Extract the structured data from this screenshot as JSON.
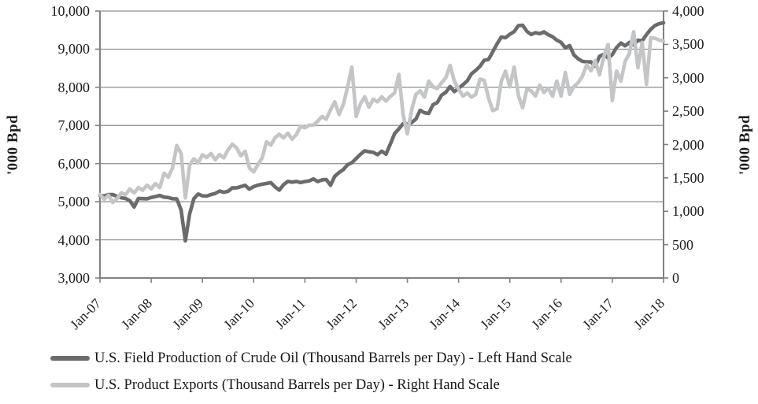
{
  "chart_data": {
    "type": "line",
    "title": "",
    "frequency": "monthly",
    "x_start": "Jan-07",
    "x_end": "Jan-18",
    "x_tick_labels": [
      {
        "label": "Jan-07",
        "month_index": 0
      },
      {
        "label": "Jan-08",
        "month_index": 12
      },
      {
        "label": "Jan-09",
        "month_index": 24
      },
      {
        "label": "Jan-10",
        "month_index": 36
      },
      {
        "label": "Jan-11",
        "month_index": 48
      },
      {
        "label": "Jan-12",
        "month_index": 60
      },
      {
        "label": "Jan-13",
        "month_index": 72
      },
      {
        "label": "Jan-14",
        "month_index": 84
      },
      {
        "label": "Jan-15",
        "month_index": 96
      },
      {
        "label": "Jan-16",
        "month_index": 108
      },
      {
        "label": "Jan-17",
        "month_index": 120
      },
      {
        "label": "Jan-18",
        "month_index": 132
      }
    ],
    "left_axis": {
      "label": "'000 Bpd",
      "min": 3000,
      "max": 10000,
      "ticks": [
        {
          "label": "10,000",
          "value": 10000
        },
        {
          "label": "9,000",
          "value": 9000
        },
        {
          "label": "8,000",
          "value": 8000
        },
        {
          "label": "7,000",
          "value": 7000
        },
        {
          "label": "6,000",
          "value": 6000
        },
        {
          "label": "5,000",
          "value": 5000
        },
        {
          "label": "4,000",
          "value": 4000
        },
        {
          "label": "3,000",
          "value": 3000
        }
      ]
    },
    "right_axis": {
      "label": "'000 Bpd",
      "min": 0,
      "max": 4000,
      "ticks": [
        {
          "label": "4,000",
          "value": 4000
        },
        {
          "label": "3,500",
          "value": 3500
        },
        {
          "label": "3,000",
          "value": 3000
        },
        {
          "label": "2,500",
          "value": 2500
        },
        {
          "label": "2,000",
          "value": 2000
        },
        {
          "label": "1,500",
          "value": 1500
        },
        {
          "label": "1,000",
          "value": 1000
        },
        {
          "label": "500",
          "value": 500
        },
        {
          "label": "0",
          "value": 0
        }
      ]
    },
    "grid": "horizontal",
    "legend_position": "bottom-left",
    "series": [
      {
        "name": "U.S. Field Production of Crude Oil (Thousand Barrels per Day) - Left Hand Scale",
        "axis": "left",
        "color": "#6a6b6d",
        "values": [
          5160,
          5152,
          5186,
          5189,
          5139,
          5104,
          5085,
          5026,
          4861,
          5085,
          5082,
          5076,
          5112,
          5136,
          5163,
          5120,
          5111,
          5079,
          5074,
          4782,
          3974,
          4679,
          5082,
          5203,
          5154,
          5148,
          5186,
          5218,
          5279,
          5246,
          5273,
          5363,
          5362,
          5398,
          5431,
          5332,
          5395,
          5435,
          5459,
          5477,
          5501,
          5390,
          5304,
          5445,
          5534,
          5512,
          5532,
          5503,
          5529,
          5547,
          5598,
          5527,
          5572,
          5583,
          5430,
          5665,
          5767,
          5844,
          5969,
          6022,
          6133,
          6242,
          6334,
          6310,
          6293,
          6233,
          6325,
          6246,
          6508,
          6785,
          6911,
          7045,
          7033,
          7076,
          7169,
          7398,
          7333,
          7315,
          7545,
          7598,
          7790,
          7868,
          8020,
          7887,
          7972,
          8068,
          8166,
          8351,
          8443,
          8551,
          8709,
          8730,
          8930,
          9140,
          9318,
          9299,
          9390,
          9459,
          9615,
          9627,
          9468,
          9385,
          9433,
          9407,
          9452,
          9379,
          9327,
          9235,
          9179,
          9033,
          9096,
          8850,
          8746,
          8680,
          8666,
          8667,
          8553,
          8810,
          8866,
          8772,
          8858,
          9043,
          9161,
          9088,
          9176,
          9110,
          9237,
          9219,
          9380,
          9520,
          9620,
          9670,
          9690
        ]
      },
      {
        "name": "U.S. Product Exports (Thousand Barrels per Day) - Right Hand Scale",
        "axis": "right",
        "color": "#c4c5c7",
        "values": [
          1250,
          1180,
          1240,
          1130,
          1190,
          1275,
          1250,
          1335,
          1275,
          1355,
          1315,
          1390,
          1335,
          1415,
          1355,
          1570,
          1510,
          1650,
          1985,
          1865,
          1200,
          1690,
          1785,
          1725,
          1845,
          1805,
          1865,
          1770,
          1850,
          1800,
          1920,
          2005,
          1950,
          1830,
          1900,
          1650,
          1590,
          1700,
          1800,
          2040,
          1990,
          2100,
          2155,
          2100,
          2170,
          2080,
          2150,
          2275,
          2250,
          2290,
          2290,
          2350,
          2420,
          2380,
          2520,
          2640,
          2450,
          2600,
          2860,
          3160,
          2420,
          2610,
          2715,
          2560,
          2680,
          2640,
          2715,
          2650,
          2720,
          2770,
          3050,
          2450,
          2160,
          2520,
          2750,
          2805,
          2710,
          2950,
          2865,
          2840,
          2925,
          3000,
          3185,
          2950,
          2830,
          2725,
          2770,
          2710,
          2750,
          2980,
          2960,
          2700,
          2510,
          2535,
          2950,
          3100,
          2865,
          3160,
          2735,
          2550,
          2830,
          2805,
          2725,
          2890,
          2780,
          2845,
          2725,
          2950,
          2726,
          3080,
          2750,
          2867,
          2926,
          3021,
          3198,
          3103,
          3257,
          3044,
          3316,
          3500,
          2660,
          3100,
          2950,
          3245,
          3365,
          3690,
          3150,
          3530,
          2900,
          3600,
          3590,
          3565,
          3550
        ]
      }
    ]
  },
  "colors": {
    "gridline": "#8a8c8e",
    "axis_line": "#7f8183",
    "text": "#1c1c1c"
  }
}
